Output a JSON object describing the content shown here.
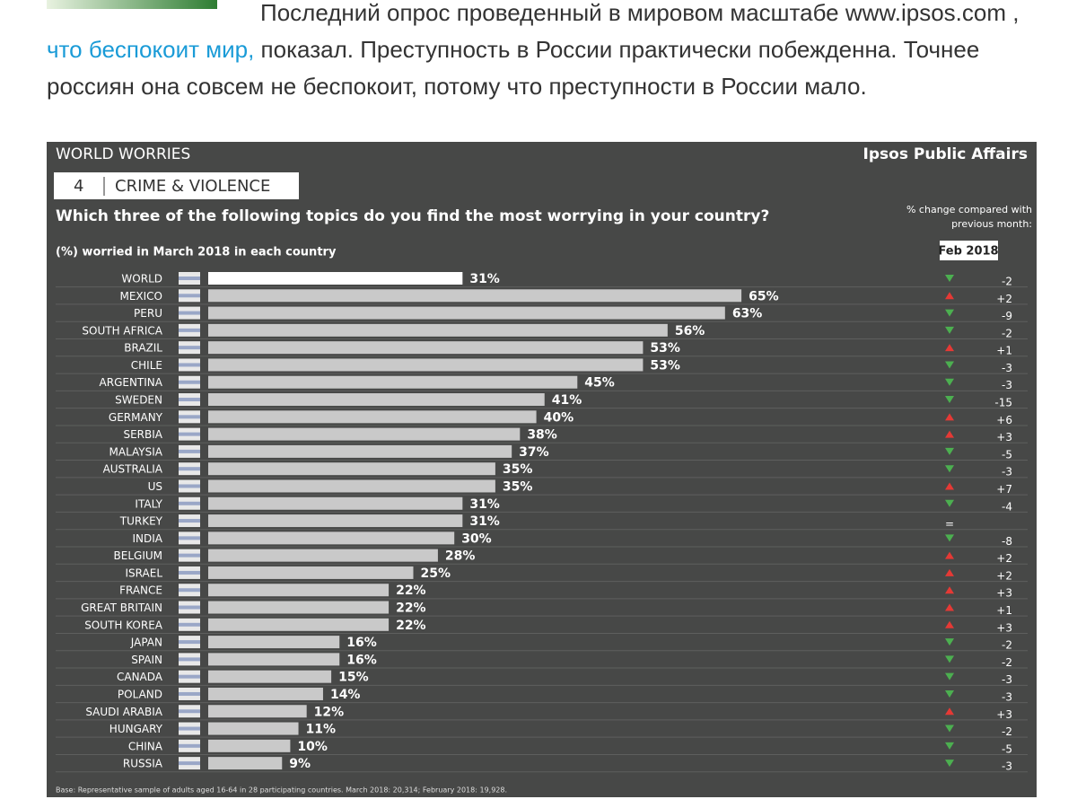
{
  "article": {
    "lead": "Последний опрос проведенный в мировом масштабе www.ipsos.com ,",
    "link": "что беспокоит мир,",
    "rest": "показал. Преступность в России практически побежденна. Точнее россиян она совсем не беспокоит, потому что преступности в России мало."
  },
  "chart_data": {
    "type": "bar",
    "orientation": "horizontal",
    "title": "WORLD WORRIES",
    "brand": "Ipsos Public Affairs",
    "section_number": "4",
    "section": "CRIME & VIOLENCE",
    "question": "Which three of the following topics do you find the most worrying in your country?",
    "subtitle": "(%) worried in March 2018 in each country",
    "change_header": "% change compared with previous month:",
    "change_month": "Feb 2018",
    "categories": [
      "WORLD",
      "MEXICO",
      "PERU",
      "SOUTH AFRICA",
      "BRAZIL",
      "CHILE",
      "ARGENTINA",
      "SWEDEN",
      "GERMANY",
      "SERBIA",
      "MALAYSIA",
      "AUSTRALIA",
      "US",
      "ITALY",
      "TURKEY",
      "INDIA",
      "BELGIUM",
      "ISRAEL",
      "FRANCE",
      "GREAT BRITAIN",
      "SOUTH KOREA",
      "JAPAN",
      "SPAIN",
      "CANADA",
      "POLAND",
      "SAUDI ARABIA",
      "HUNGARY",
      "CHINA",
      "RUSSIA"
    ],
    "values": [
      31,
      65,
      63,
      56,
      53,
      53,
      45,
      41,
      40,
      38,
      37,
      35,
      35,
      31,
      31,
      30,
      28,
      25,
      22,
      22,
      22,
      16,
      16,
      15,
      14,
      12,
      11,
      10,
      9
    ],
    "value_labels": [
      "31%",
      "65%",
      "63%",
      "56%",
      "53%",
      "53%",
      "45%",
      "41%",
      "40%",
      "38%",
      "37%",
      "35%",
      "35%",
      "31%",
      "31%",
      "30%",
      "28%",
      "25%",
      "22%",
      "22%",
      "22%",
      "16%",
      "16%",
      "15%",
      "14%",
      "12%",
      "11%",
      "10%",
      "9%"
    ],
    "changes": [
      -2,
      2,
      -9,
      -2,
      1,
      -3,
      -3,
      -15,
      6,
      3,
      -5,
      -3,
      7,
      -4,
      0,
      -8,
      2,
      2,
      3,
      1,
      3,
      -2,
      -2,
      -3,
      -3,
      3,
      -2,
      -5,
      -3
    ],
    "change_labels": [
      "-2",
      "+2",
      "-9",
      "-2",
      "+1",
      "-3",
      "-3",
      "-15",
      "+6",
      "+3",
      "-5",
      "-3",
      "+7",
      "-4",
      "=",
      "-8",
      "+2",
      "+2",
      "+3",
      "+1",
      "+3",
      "-2",
      "-2",
      "-3",
      "-3",
      "+3",
      "-2",
      "-5",
      "-3"
    ],
    "color": "#c9c9c9",
    "highlight_color": "#ffffff",
    "up_color": "#e53935",
    "down_color": "#4caf50",
    "footnote": "Base: Representative sample of adults aged 16-64 in 28 participating countries. March 2018: 20,314; February 2018: 19,928."
  }
}
